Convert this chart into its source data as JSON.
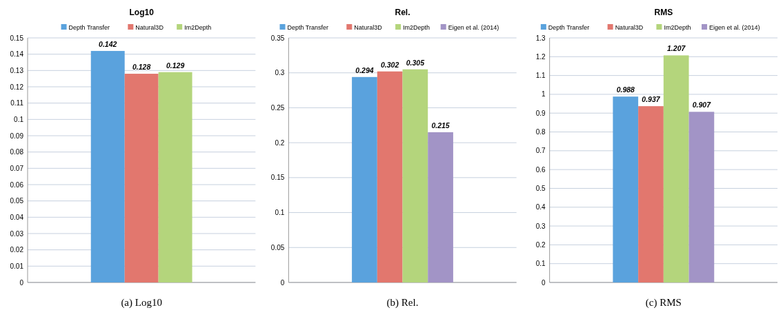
{
  "chart_data": [
    {
      "type": "bar",
      "title": "Log10",
      "categories": [
        null
      ],
      "series": [
        {
          "name": "Depth Transfer",
          "color": "#5aa2dd",
          "values": [
            0.142
          ]
        },
        {
          "name": "Natural3D",
          "color": "#e2776e",
          "values": [
            0.128
          ]
        },
        {
          "name": "Im2Depth",
          "color": "#b4d57c",
          "values": [
            0.129
          ]
        }
      ],
      "ylim": [
        0,
        0.15
      ],
      "yticks": [
        0,
        0.01,
        0.02,
        0.03,
        0.04,
        0.05,
        0.06,
        0.07,
        0.08,
        0.09,
        0.1,
        0.11,
        0.12,
        0.13,
        0.14,
        0.15
      ],
      "grid": "y",
      "legend": "top",
      "data_labels": true,
      "annotations": [
        "(a) Log10"
      ]
    },
    {
      "type": "bar",
      "title": "Rel.",
      "categories": [
        null
      ],
      "series": [
        {
          "name": "Depth Transfer",
          "color": "#5aa2dd",
          "values": [
            0.294
          ]
        },
        {
          "name": "Natural3D",
          "color": "#e2776e",
          "values": [
            0.302
          ]
        },
        {
          "name": "Im2Depth",
          "color": "#b4d57c",
          "values": [
            0.305
          ]
        },
        {
          "name": "Eigen et al. (2014)",
          "color": "#a294c6",
          "values": [
            0.215
          ]
        }
      ],
      "ylim": [
        0,
        0.35
      ],
      "yticks": [
        0,
        0.05,
        0.1,
        0.15,
        0.2,
        0.25,
        0.3,
        0.35
      ],
      "grid": "y",
      "legend": "top",
      "data_labels": true,
      "annotations": [
        "(b) Rel."
      ]
    },
    {
      "type": "bar",
      "title": "RMS",
      "categories": [
        null
      ],
      "series": [
        {
          "name": "Depth Transfer",
          "color": "#5aa2dd",
          "values": [
            0.988
          ]
        },
        {
          "name": "Natural3D",
          "color": "#e2776e",
          "values": [
            0.937
          ]
        },
        {
          "name": "Im2Depth",
          "color": "#b4d57c",
          "values": [
            1.207
          ]
        },
        {
          "name": "Eigen et al. (2014)",
          "color": "#a294c6",
          "values": [
            0.907
          ]
        }
      ],
      "ylim": [
        0,
        1.3
      ],
      "yticks": [
        0,
        0.1,
        0.2,
        0.3,
        0.4,
        0.5,
        0.6,
        0.7,
        0.8,
        0.9,
        1,
        1.1,
        1.2,
        1.3
      ],
      "grid": "y",
      "legend": "top",
      "data_labels": true,
      "annotations": [
        "(c) RMS"
      ]
    }
  ]
}
